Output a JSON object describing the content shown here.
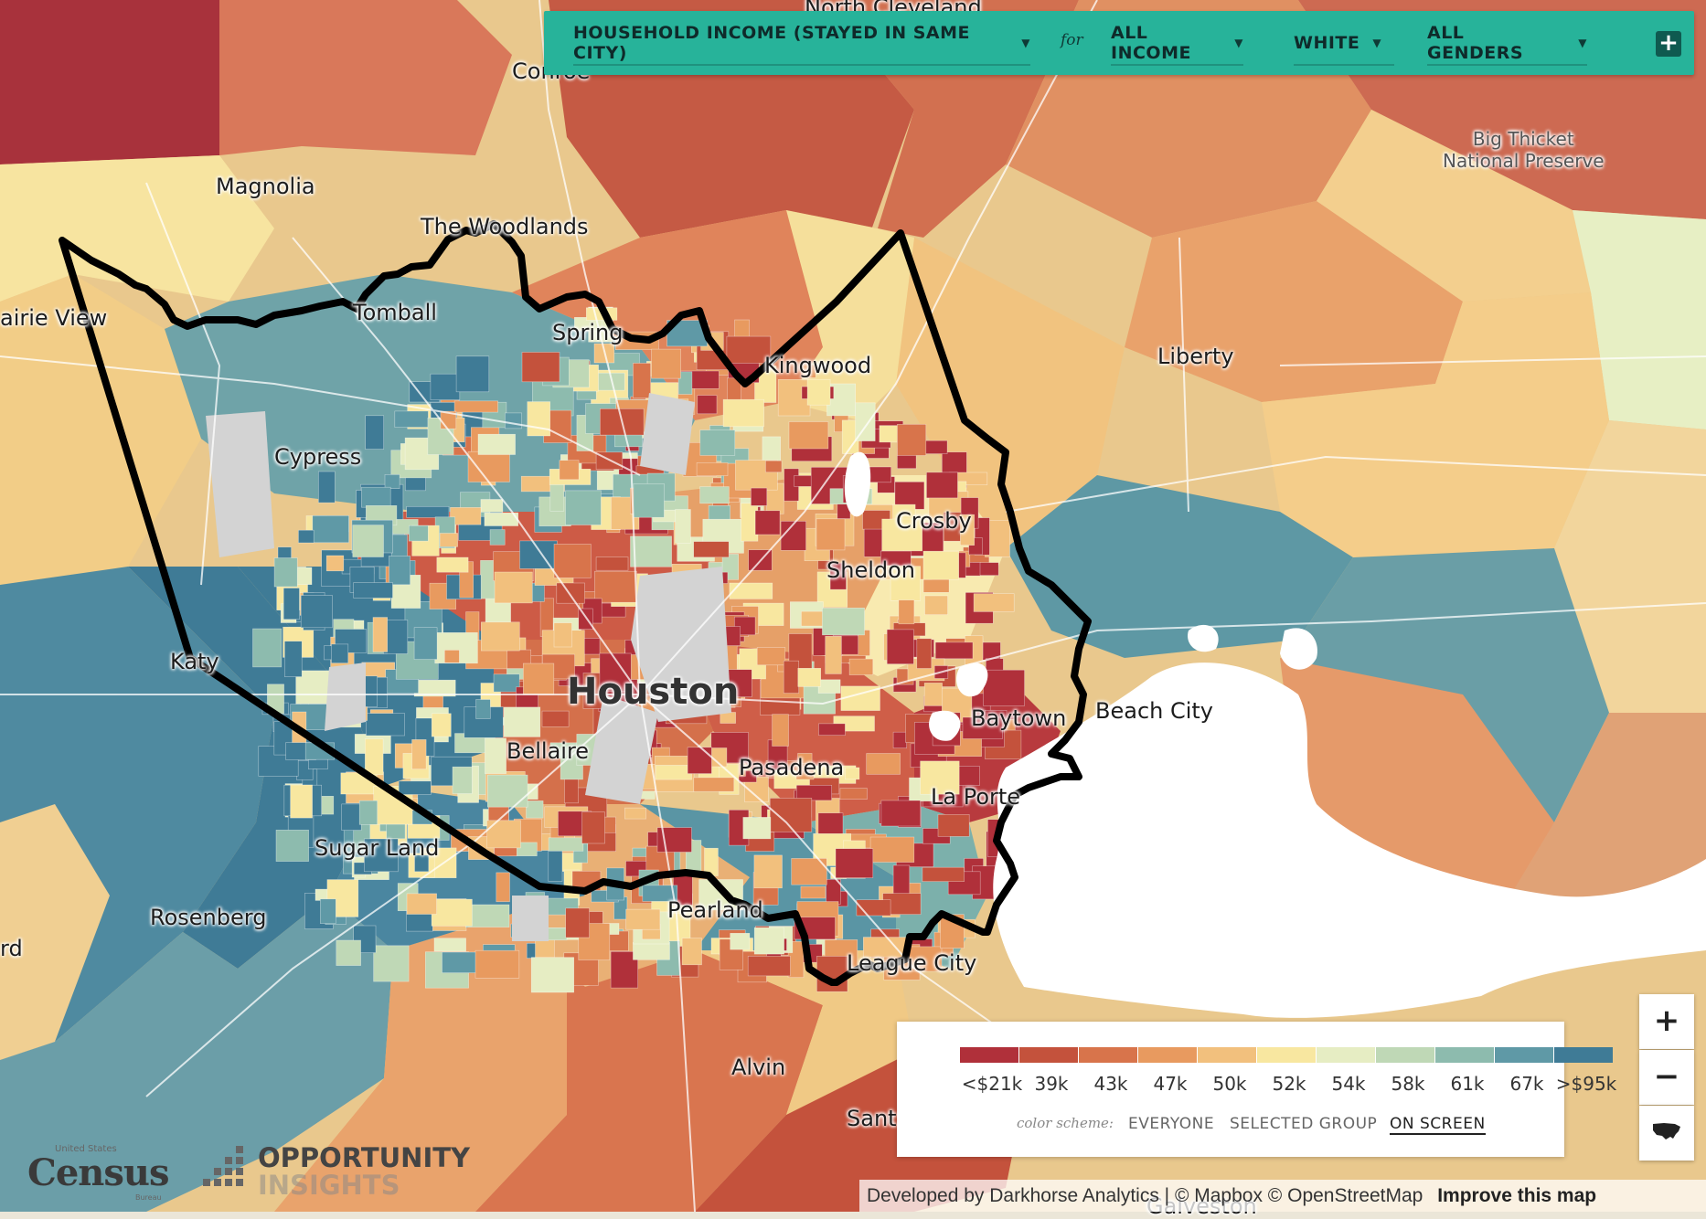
{
  "filters": {
    "metric": "HOUSEHOLD INCOME (STAYED IN SAME CITY)",
    "connector": "for",
    "income": "ALL INCOME",
    "race": "WHITE",
    "gender": "ALL GENDERS",
    "add": "+"
  },
  "places": {
    "conroe": "Conroe",
    "magnolia": "Magnolia",
    "woodlands": "The Woodlands",
    "tomball": "Tomball",
    "spring": "Spring",
    "kingwood": "Kingwood",
    "prairie_view": "airie View",
    "cypress": "Cypress",
    "crosby": "Crosby",
    "sheldon": "Sheldon",
    "liberty": "Liberty",
    "big_thicket": "Big Thicket\nNational Preserve",
    "katy": "Katy",
    "houston": "Houston",
    "baytown": "Baytown",
    "beach_city": "Beach City",
    "bellaire": "Bellaire",
    "pasadena": "Pasadena",
    "la_porte": "La Porte",
    "sugar_land": "Sugar Land",
    "rosenberg": "Rosenberg",
    "rd": "rd",
    "pearland": "Pearland",
    "league_city": "League City",
    "alvin": "Alvin",
    "sant": "Sant",
    "galveston": "Galveston",
    "north": "North Cleveland"
  },
  "legend": {
    "colors": [
      "#b0303a",
      "#c4523c",
      "#d8744b",
      "#e89a5f",
      "#f2c07d",
      "#f8e7a0",
      "#e6edc3",
      "#bfd8b6",
      "#8dbbae",
      "#5f99a6",
      "#3f7b96"
    ],
    "ticks": [
      "<$21k",
      "39k",
      "43k",
      "47k",
      "50k",
      "52k",
      "54k",
      "58k",
      "61k",
      "67k",
      ">$95k"
    ],
    "scheme_label": "color scheme:",
    "scheme_options": [
      "EVERYONE",
      "SELECTED GROUP",
      "ON SCREEN"
    ],
    "scheme_active": "ON SCREEN"
  },
  "zoom": {
    "in": "+",
    "out": "−",
    "reset_icon": "usa-icon"
  },
  "attribution": {
    "text": "Developed by Darkhorse Analytics | © Mapbox © OpenStreetMap",
    "link": "Improve this map"
  },
  "logos": {
    "census_top": "United States",
    "census": "Census",
    "census_bottom": "Bureau",
    "oi_1": "OPPORTUNITY",
    "oi_2": "INSIGHTS"
  }
}
